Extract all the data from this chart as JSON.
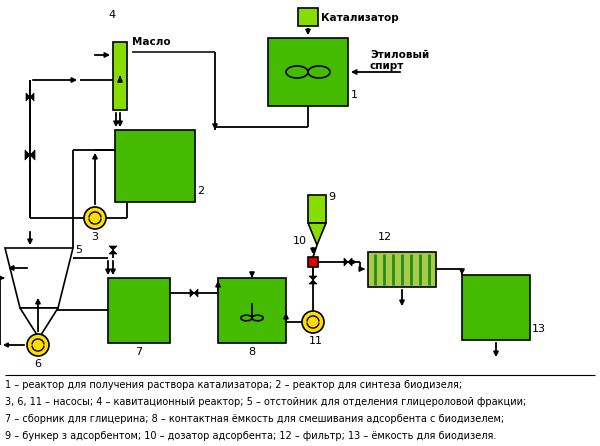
{
  "bg_color": "#ffffff",
  "green_main": "#44BB00",
  "green_bright": "#88DD00",
  "green_dark": "#228B22",
  "yellow": "#FFDD00",
  "red": "#DD0000",
  "black": "#000000",
  "caption_lines": [
    "1 – реактор для получения раствора катализатора; 2 – реактор для синтеза биодизеля;",
    "3, 6, 11 – насосы; 4 – кавитационный реактор; 5 – отстойник для отделения глицероловой фракции;",
    "7 – сборник для глицерина; 8 – контактная ёмкость для смешивания адсорбента с биодизелем;",
    "9 – бункер з адсорбентом; 10 – дозатор адсорбента; 12 – фильтр; 13 – ёмкость для биодизеля."
  ]
}
